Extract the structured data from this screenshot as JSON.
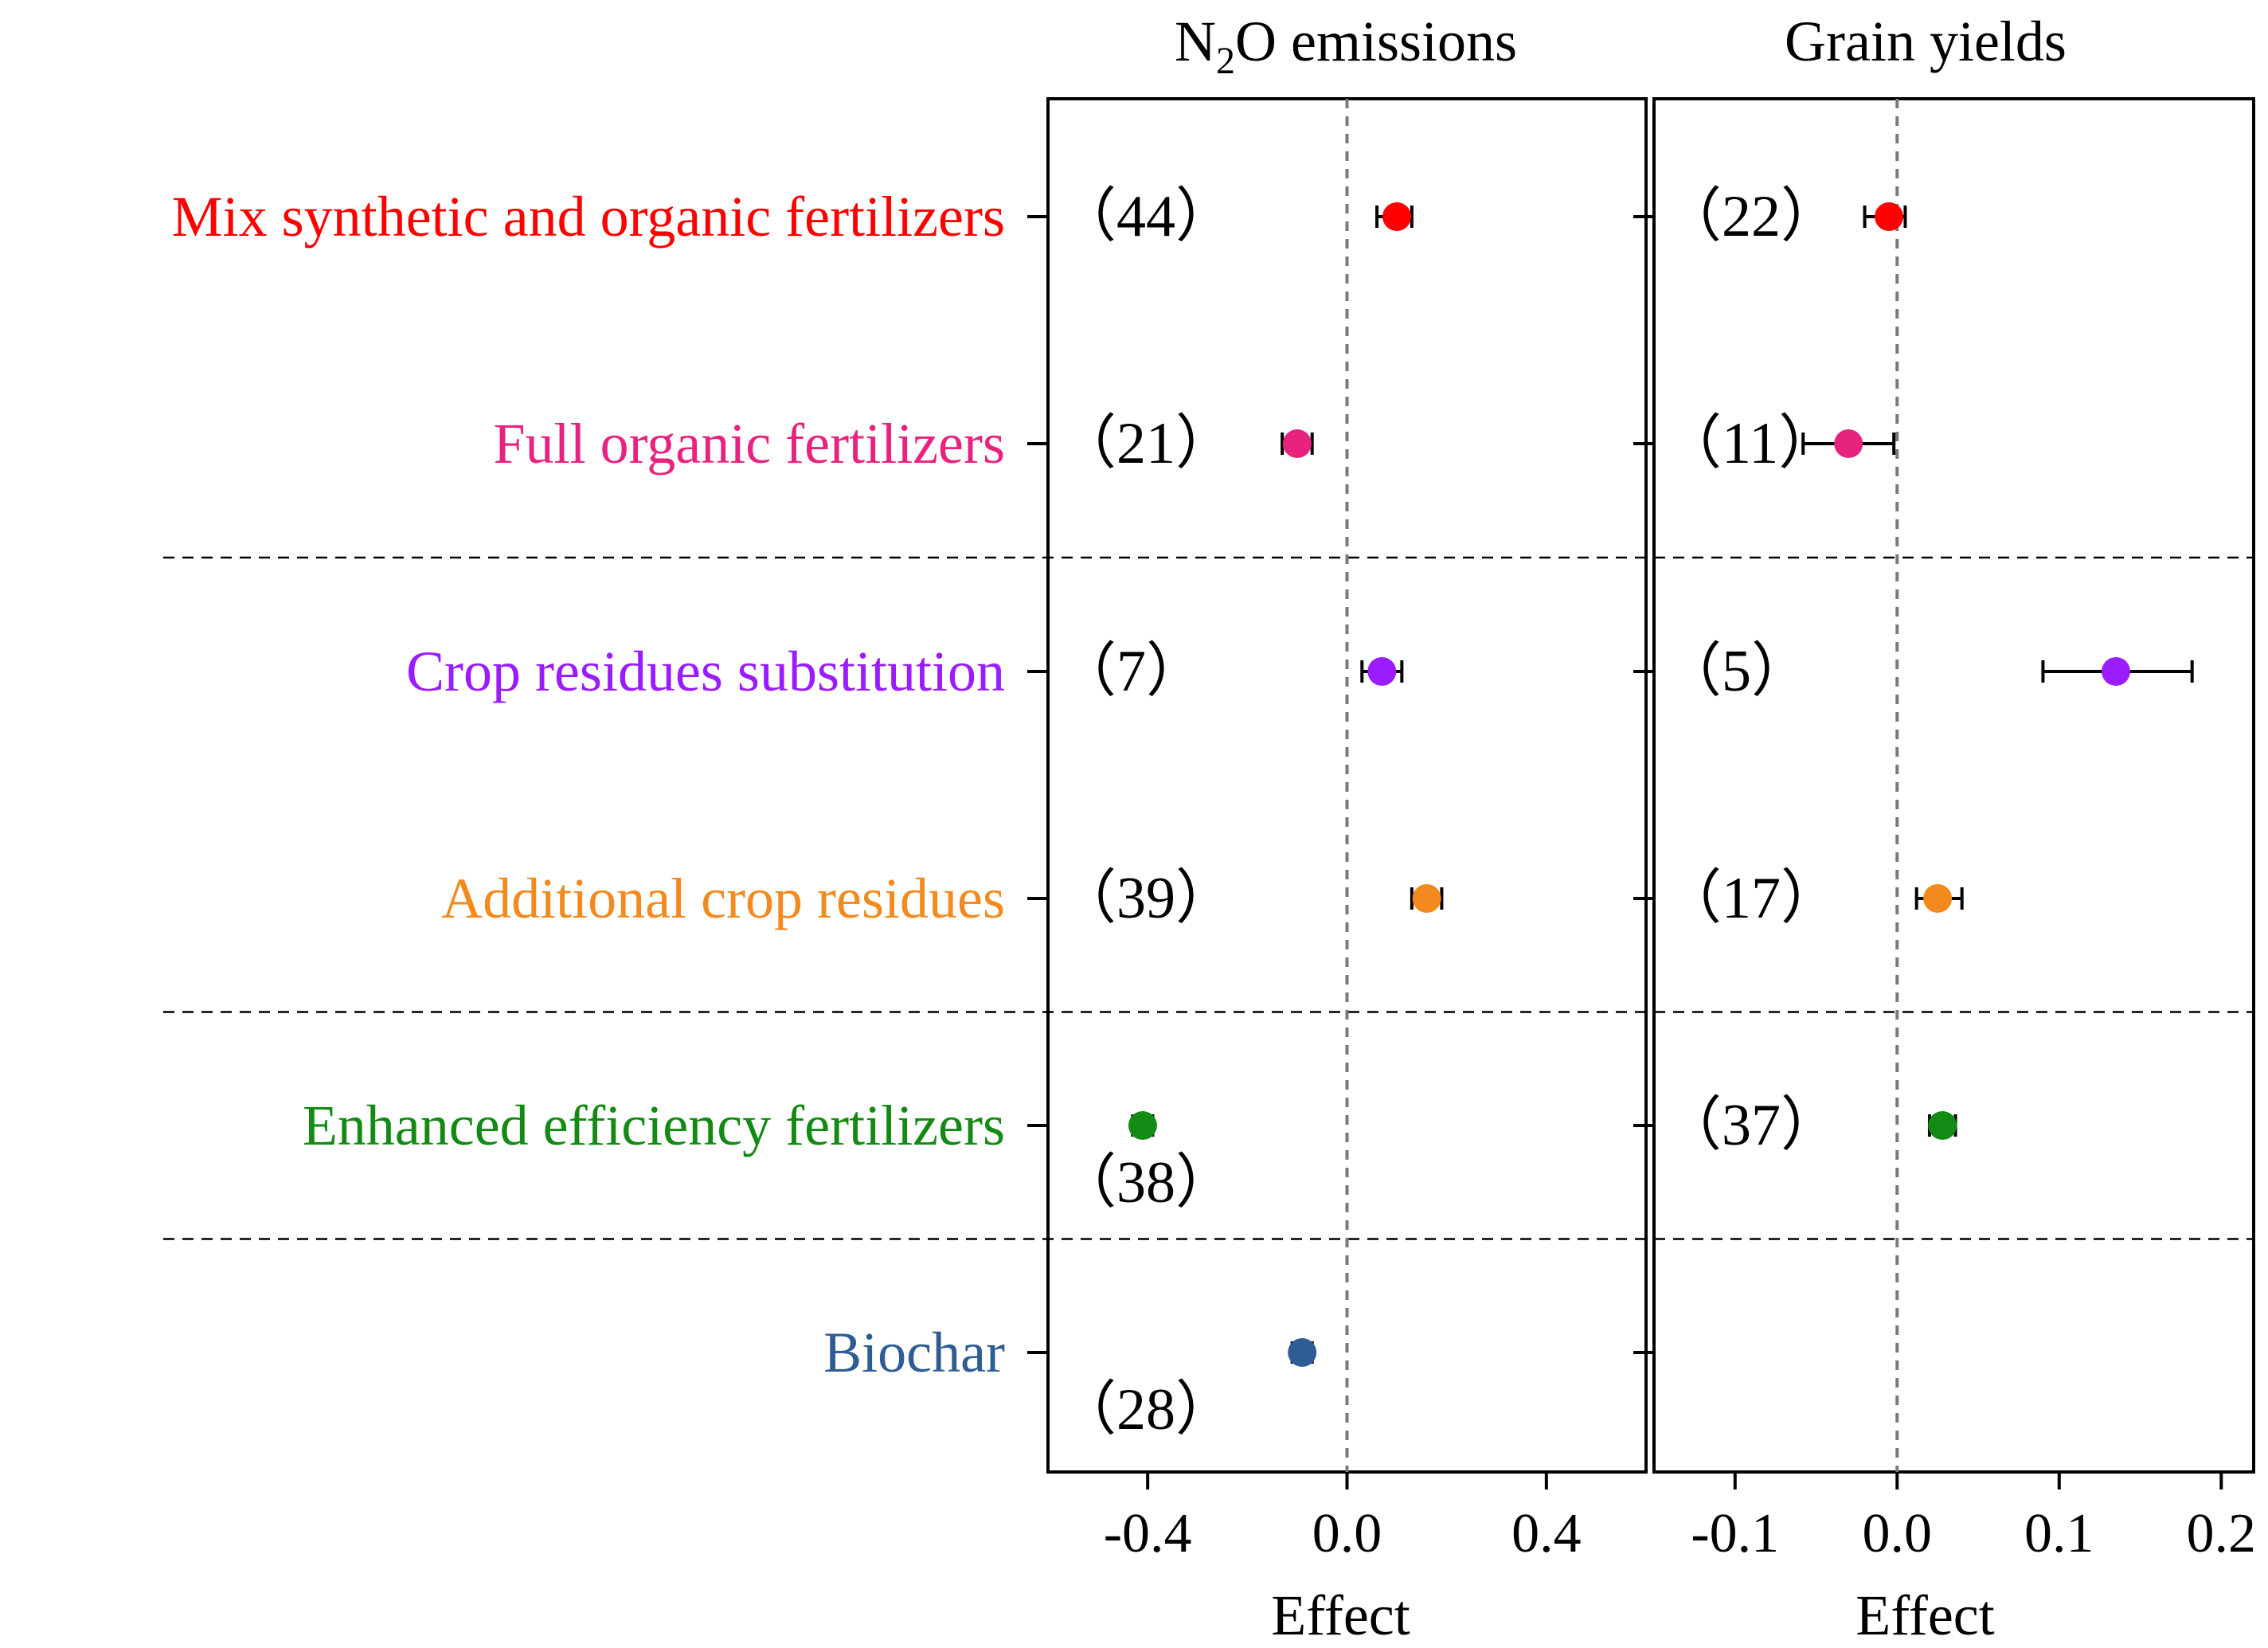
{
  "chart_data": {
    "type": "scatter",
    "subtype": "forest-plot",
    "categories": [
      {
        "label": "Mix synthetic and organic fertilizers",
        "color": "#ff0000"
      },
      {
        "label": "Full organic fertilizers",
        "color": "#e8237f"
      },
      {
        "label": "Crop residues substitution",
        "color": "#9a1cff"
      },
      {
        "label": "Additional crop residues",
        "color": "#f28a1e"
      },
      {
        "label": "Enhanced efficiency fertilizers",
        "color": "#138a13"
      },
      {
        "label": "Biochar",
        "color": "#2e5c94"
      }
    ],
    "panels": [
      {
        "title_main": "N",
        "title_sub": "2",
        "title_rest": "O emissions",
        "xlabel": "Effect",
        "xlim": [
          -0.6,
          0.6
        ],
        "ticks": [
          -0.4,
          0.0,
          0.4
        ],
        "tick_labels": [
          "-0.4",
          "0.0",
          "0.4"
        ],
        "points": [
          {
            "category": 0,
            "effect": 0.1,
            "ci_low": 0.06,
            "ci_high": 0.13,
            "n_label": "（44）"
          },
          {
            "category": 1,
            "effect": -0.1,
            "ci_low": -0.13,
            "ci_high": -0.07,
            "n_label": "（21）"
          },
          {
            "category": 2,
            "effect": 0.07,
            "ci_low": 0.03,
            "ci_high": 0.11,
            "n_label": "（7）"
          },
          {
            "category": 3,
            "effect": 0.16,
            "ci_low": 0.13,
            "ci_high": 0.19,
            "n_label": "（39）"
          },
          {
            "category": 4,
            "effect": -0.41,
            "ci_low": -0.43,
            "ci_high": -0.39,
            "n_label": "（38）"
          },
          {
            "category": 5,
            "effect": -0.09,
            "ci_low": -0.11,
            "ci_high": -0.07,
            "n_label": "（28）"
          }
        ]
      },
      {
        "title": "Grain yields",
        "xlabel": "Effect",
        "xlim": [
          -0.15,
          0.22
        ],
        "ticks": [
          -0.1,
          0.0,
          0.1,
          0.2
        ],
        "tick_labels": [
          "-0.1",
          "0.0",
          "0.1",
          "0.2"
        ],
        "points": [
          {
            "category": 0,
            "effect": -0.005,
            "ci_low": -0.02,
            "ci_high": 0.005,
            "n_label": "（22）"
          },
          {
            "category": 1,
            "effect": -0.03,
            "ci_low": -0.058,
            "ci_high": -0.002,
            "n_label": "（11）"
          },
          {
            "category": 2,
            "effect": 0.135,
            "ci_low": 0.09,
            "ci_high": 0.182,
            "n_label": "（5）"
          },
          {
            "category": 3,
            "effect": 0.025,
            "ci_low": 0.012,
            "ci_high": 0.04,
            "n_label": "（17）"
          },
          {
            "category": 4,
            "effect": 0.028,
            "ci_low": 0.02,
            "ci_high": 0.036,
            "n_label": "（37）"
          }
        ]
      }
    ],
    "group_separators_after": [
      1,
      3,
      4
    ]
  }
}
